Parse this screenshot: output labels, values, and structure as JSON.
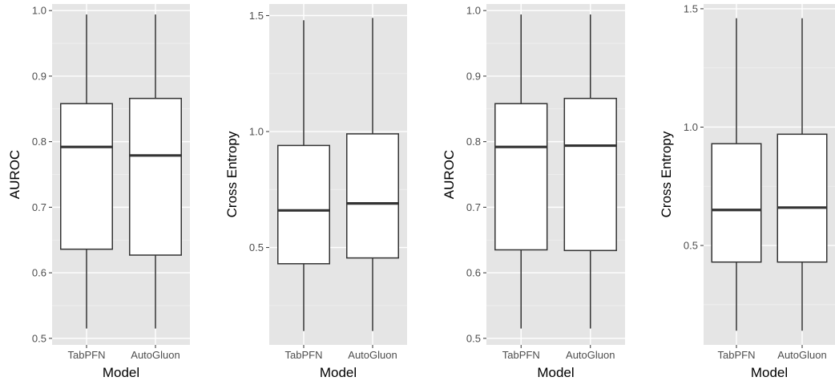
{
  "colors": {
    "panel_background": "#e5e5e5",
    "grid_major": "#ffffff",
    "grid_minor": "#f0f0f0",
    "box_fill": "#ffffff",
    "box_stroke": "#333333",
    "tick_text": "#4d4d4d"
  },
  "chart_data": [
    {
      "type": "boxplot",
      "xlabel": "Model",
      "ylabel": "AUROC",
      "categories": [
        "TabPFN",
        "AutoGluon"
      ],
      "yticks": [
        0.5,
        0.6,
        0.7,
        0.8,
        0.9,
        1.0
      ],
      "ytick_labels": [
        "0.5",
        "0.6",
        "0.7",
        "0.8",
        "0.9",
        "1.0"
      ],
      "ylim": [
        0.49,
        1.01
      ],
      "boxes": [
        {
          "min": 0.515,
          "q1": 0.636,
          "median": 0.792,
          "q3": 0.858,
          "max": 0.994
        },
        {
          "min": 0.515,
          "q1": 0.627,
          "median": 0.779,
          "q3": 0.866,
          "max": 0.994
        }
      ],
      "grid": true
    },
    {
      "type": "boxplot",
      "xlabel": "Model",
      "ylabel": "Cross Entropy",
      "categories": [
        "TabPFN",
        "AutoGluon"
      ],
      "yticks": [
        0.5,
        1.0,
        1.5
      ],
      "ytick_labels": [
        "0.5",
        "1.0",
        "1.5"
      ],
      "ylim": [
        0.08,
        1.55
      ],
      "boxes": [
        {
          "min": 0.14,
          "q1": 0.43,
          "median": 0.66,
          "q3": 0.94,
          "max": 1.48
        },
        {
          "min": 0.14,
          "q1": 0.455,
          "median": 0.69,
          "q3": 0.99,
          "max": 1.49
        }
      ],
      "grid": true
    },
    {
      "type": "boxplot",
      "xlabel": "Model",
      "ylabel": "AUROC",
      "categories": [
        "TabPFN",
        "AutoGluon"
      ],
      "yticks": [
        0.5,
        0.6,
        0.7,
        0.8,
        0.9,
        1.0
      ],
      "ytick_labels": [
        "0.5",
        "0.6",
        "0.7",
        "0.8",
        "0.9",
        "1.0"
      ],
      "ylim": [
        0.49,
        1.01
      ],
      "boxes": [
        {
          "min": 0.515,
          "q1": 0.635,
          "median": 0.792,
          "q3": 0.858,
          "max": 0.994
        },
        {
          "min": 0.515,
          "q1": 0.634,
          "median": 0.794,
          "q3": 0.866,
          "max": 0.994
        }
      ],
      "grid": true
    },
    {
      "type": "boxplot",
      "xlabel": "Model",
      "ylabel": "Cross Entropy",
      "categories": [
        "TabPFN",
        "AutoGluon"
      ],
      "yticks": [
        0.5,
        1.0,
        1.5
      ],
      "ytick_labels": [
        "0.5",
        "1.0",
        "1.5"
      ],
      "ylim": [
        0.08,
        1.52
      ],
      "boxes": [
        {
          "min": 0.14,
          "q1": 0.43,
          "median": 0.65,
          "q3": 0.93,
          "max": 1.46
        },
        {
          "min": 0.14,
          "q1": 0.43,
          "median": 0.66,
          "q3": 0.97,
          "max": 1.46
        }
      ],
      "grid": true
    }
  ]
}
